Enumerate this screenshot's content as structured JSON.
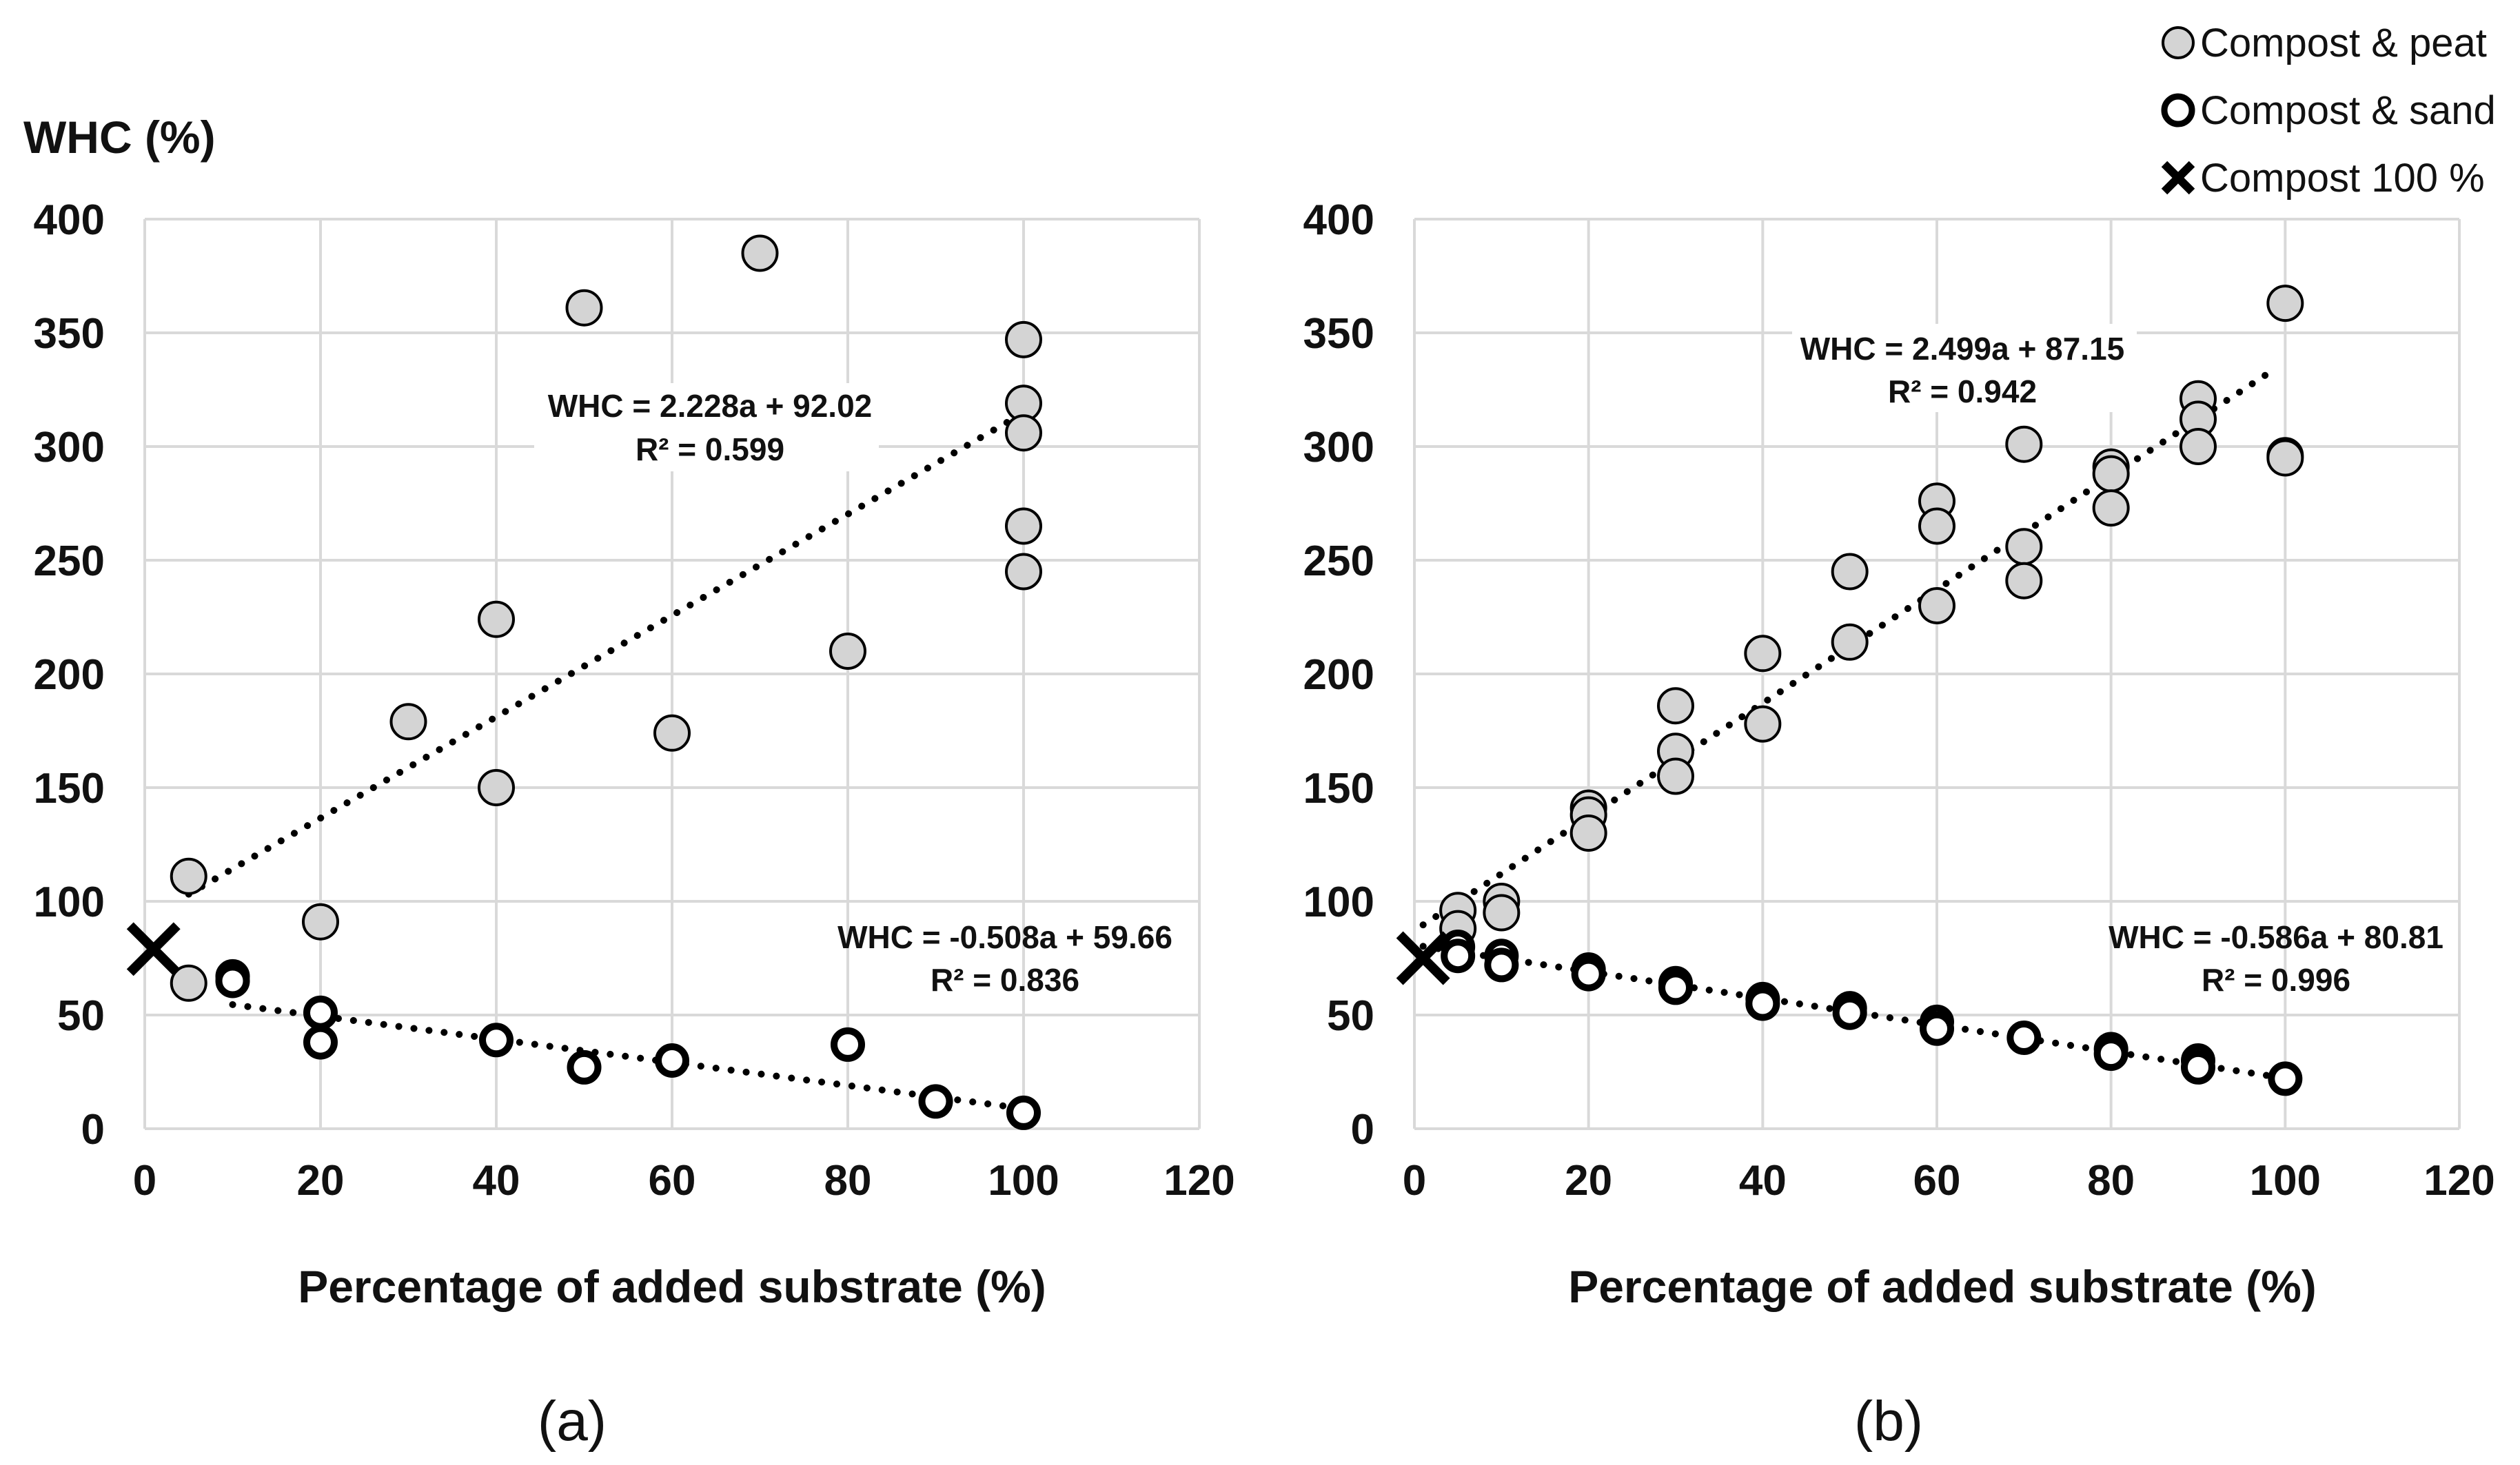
{
  "figure": {
    "y_axis_title": "WHC (%)",
    "legend": [
      {
        "label": "Compost & peat",
        "marker": "filled-circle"
      },
      {
        "label": "Compost & sand",
        "marker": "open-circle"
      },
      {
        "label": "Compost 100 %",
        "marker": "cross"
      }
    ],
    "colors": {
      "peat_fill": "#d4d4d4",
      "marker_stroke": "#000000",
      "grid": "#d9d9d9",
      "trend": "#000000"
    }
  },
  "chart_data": [
    {
      "type": "scatter",
      "panel_label": "(a)",
      "xlabel": "Percentage of added substrate (%)",
      "ylabel": "WHC (%)",
      "xlim": [
        0,
        120
      ],
      "ylim": [
        0,
        400
      ],
      "xticks": [
        0,
        20,
        40,
        60,
        80,
        100,
        120
      ],
      "yticks": [
        0,
        50,
        100,
        150,
        200,
        250,
        300,
        350,
        400
      ],
      "grid": true,
      "series": [
        {
          "name": "Compost & peat",
          "marker": "filled-circle",
          "points": [
            [
              5,
              111
            ],
            [
              5,
              64
            ],
            [
              20,
              91
            ],
            [
              30,
              179
            ],
            [
              40,
              224
            ],
            [
              40,
              150
            ],
            [
              50,
              361
            ],
            [
              60,
              174
            ],
            [
              70,
              385
            ],
            [
              80,
              210
            ],
            [
              100,
              347
            ],
            [
              100,
              319
            ],
            [
              100,
              306
            ],
            [
              100,
              265
            ],
            [
              100,
              245
            ]
          ]
        },
        {
          "name": "Compost & sand",
          "marker": "open-circle",
          "points": [
            [
              10,
              67
            ],
            [
              10,
              65
            ],
            [
              20,
              51
            ],
            [
              20,
              38
            ],
            [
              40,
              39
            ],
            [
              50,
              27
            ],
            [
              60,
              30
            ],
            [
              80,
              37
            ],
            [
              90,
              12
            ],
            [
              100,
              7
            ]
          ]
        },
        {
          "name": "Compost 100 %",
          "marker": "cross",
          "points": [
            [
              1,
              79
            ]
          ]
        }
      ],
      "trendlines": [
        {
          "series": "Compost & peat",
          "x_range": [
            5,
            100
          ],
          "slope": 2.228,
          "intercept": 92.02,
          "equation": "WHC = 2.228a + 92.02",
          "r2": "R² = 0.599"
        },
        {
          "series": "Compost & sand",
          "x_range": [
            10,
            100
          ],
          "slope": -0.508,
          "intercept": 59.66,
          "equation": "WHC = -0.508a + 59.66",
          "r2": "R² = 0.836"
        }
      ]
    },
    {
      "type": "scatter",
      "panel_label": "(b)",
      "xlabel": "Percentage of added substrate (%)",
      "ylabel": "",
      "xlim": [
        0,
        120
      ],
      "ylim": [
        0,
        400
      ],
      "xticks": [
        0,
        20,
        40,
        60,
        80,
        100,
        120
      ],
      "yticks": [
        0,
        50,
        100,
        150,
        200,
        250,
        300,
        350,
        400
      ],
      "grid": true,
      "series": [
        {
          "name": "Compost & peat",
          "marker": "filled-circle",
          "points": [
            [
              5,
              96
            ],
            [
              5,
              88
            ],
            [
              10,
              100
            ],
            [
              10,
              95
            ],
            [
              20,
              141
            ],
            [
              20,
              138
            ],
            [
              20,
              130
            ],
            [
              30,
              186
            ],
            [
              30,
              166
            ],
            [
              30,
              155
            ],
            [
              40,
              209
            ],
            [
              40,
              178
            ],
            [
              50,
              245
            ],
            [
              50,
              214
            ],
            [
              60,
              276
            ],
            [
              60,
              265
            ],
            [
              60,
              230
            ],
            [
              70,
              301
            ],
            [
              70,
              256
            ],
            [
              70,
              241
            ],
            [
              80,
              291
            ],
            [
              80,
              288
            ],
            [
              80,
              273
            ],
            [
              90,
              321
            ],
            [
              90,
              312
            ],
            [
              90,
              300
            ],
            [
              100,
              363
            ],
            [
              100,
              296
            ],
            [
              100,
              295
            ]
          ]
        },
        {
          "name": "Compost & sand",
          "marker": "open-circle",
          "points": [
            [
              5,
              80
            ],
            [
              5,
              76
            ],
            [
              10,
              76
            ],
            [
              10,
              72
            ],
            [
              20,
              70
            ],
            [
              20,
              68
            ],
            [
              30,
              64
            ],
            [
              30,
              62
            ],
            [
              40,
              57
            ],
            [
              40,
              55
            ],
            [
              50,
              53
            ],
            [
              50,
              51
            ],
            [
              60,
              47
            ],
            [
              60,
              44
            ],
            [
              70,
              40
            ],
            [
              80,
              35
            ],
            [
              80,
              33
            ],
            [
              90,
              30
            ],
            [
              90,
              27
            ],
            [
              100,
              22
            ]
          ]
        },
        {
          "name": "Compost 100 %",
          "marker": "cross",
          "points": [
            [
              1,
              75
            ]
          ]
        }
      ],
      "trendlines": [
        {
          "series": "Compost & peat",
          "x_range": [
            1,
            98
          ],
          "slope": 2.499,
          "intercept": 87.15,
          "equation": "WHC = 2.499a + 87.15",
          "r2": "R² = 0.942"
        },
        {
          "series": "Compost & sand",
          "x_range": [
            1,
            100
          ],
          "slope": -0.586,
          "intercept": 80.81,
          "equation": "WHC = -0.586a + 80.81",
          "r2": "R² = 0.996"
        }
      ]
    }
  ]
}
